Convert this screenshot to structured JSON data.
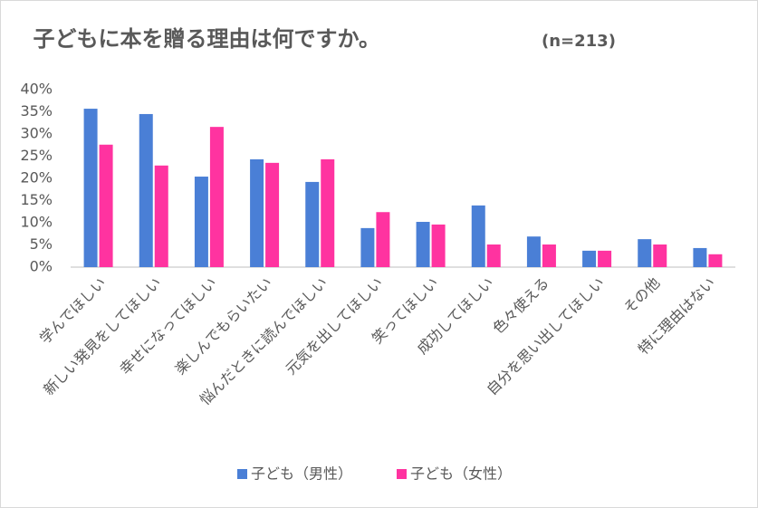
{
  "chart_data": {
    "type": "bar",
    "title": "子どもに本を贈る理由は何ですか。",
    "subtitle": "(n=213)",
    "categories": [
      "学んでほしい",
      "新しい発見をしてほしい",
      "幸せになってほしい",
      "楽しんでもらいたい",
      "悩んだときに読んでほしい",
      "元気を出してほしい",
      "笑ってほしい",
      "成功してほしい",
      "色々使える",
      "自分を思い出してほしい",
      "その他",
      "特に理由はない"
    ],
    "series": [
      {
        "name": "子ども（男性）",
        "color": "#4a7fd6",
        "values": [
          35.7,
          34.5,
          20.4,
          24.3,
          19.2,
          8.8,
          10.2,
          13.9,
          6.9,
          3.7,
          6.3,
          4.3
        ]
      },
      {
        "name": "子ども（女性）",
        "color": "#ff33a0",
        "values": [
          27.6,
          22.9,
          31.6,
          23.5,
          24.3,
          12.4,
          9.6,
          5.1,
          5.1,
          3.7,
          5.1,
          2.9
        ]
      }
    ],
    "ylim": [
      0,
      40
    ],
    "yticks": [
      {
        "value": 0,
        "label": "0%"
      },
      {
        "value": 5,
        "label": "5%"
      },
      {
        "value": 10,
        "label": "10%"
      },
      {
        "value": 15,
        "label": "15%"
      },
      {
        "value": 20,
        "label": "20%"
      },
      {
        "value": 25,
        "label": "25%"
      },
      {
        "value": 30,
        "label": "30%"
      },
      {
        "value": 35,
        "label": "35%"
      },
      {
        "value": 40,
        "label": "40%"
      }
    ],
    "grid": false,
    "legend": "bottom"
  }
}
